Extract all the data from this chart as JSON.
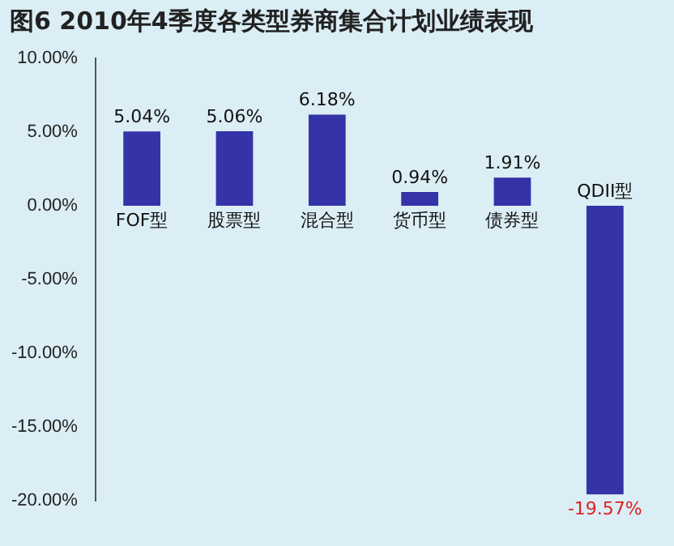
{
  "chart_data": {
    "type": "bar",
    "title": "图6  2010年4季度各类型券商集合计划业绩表现",
    "categories": [
      "FOF型",
      "股票型",
      "混合型",
      "货币型",
      "债券型",
      "QDII型"
    ],
    "values": [
      5.04,
      5.06,
      6.18,
      0.94,
      1.91,
      -19.57
    ],
    "value_labels": [
      "5.04%",
      "5.06%",
      "6.18%",
      "0.94%",
      "1.91%",
      "-19.57%"
    ],
    "color": "#3434a8",
    "ylim": [
      -20,
      10
    ],
    "yticks": [
      {
        "value": -20,
        "label": "-20.00%"
      },
      {
        "value": -15,
        "label": "-15.00%"
      },
      {
        "value": -10,
        "label": "-10.00%"
      },
      {
        "value": -5,
        "label": "-5.00%"
      },
      {
        "value": 0,
        "label": "0.00%"
      },
      {
        "value": 5,
        "label": "5.00%"
      },
      {
        "value": 10,
        "label": "10.00%"
      }
    ],
    "grid": false,
    "legend": false
  }
}
